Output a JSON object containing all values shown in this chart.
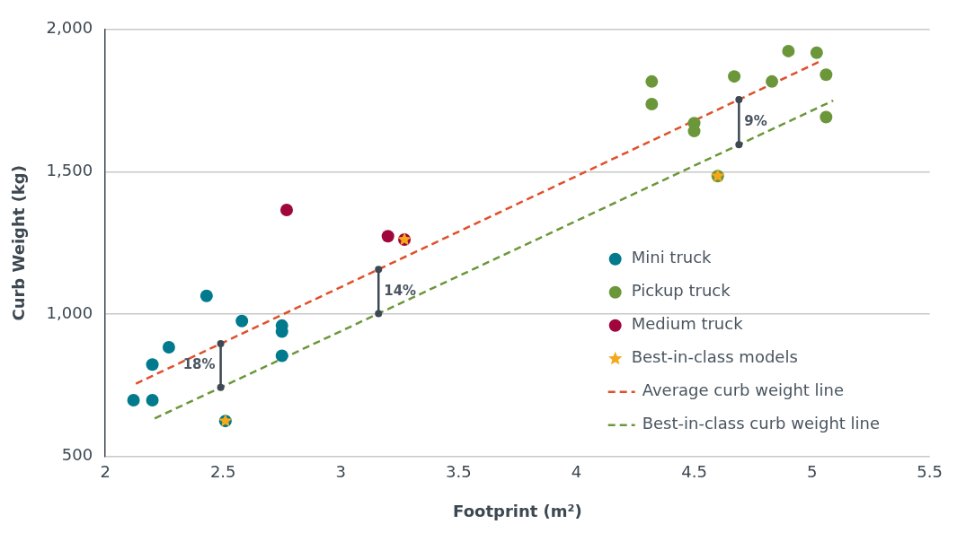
{
  "chart_data": {
    "type": "scatter",
    "xlabel": "Footprint (m²)",
    "ylabel": "Curb Weight (kg)",
    "xlim": [
      2,
      5.5
    ],
    "xticks": [
      2,
      2.5,
      3,
      3.5,
      4,
      4.5,
      5,
      5.5
    ],
    "ylim": [
      500,
      2000
    ],
    "yticks": [
      {
        "value": 500,
        "label": "500"
      },
      {
        "value": 1000,
        "label": "1,000"
      },
      {
        "value": 1500,
        "label": "1,500"
      },
      {
        "value": 2000,
        "label": "2,000"
      }
    ],
    "grid": "y",
    "legend": "bottom right",
    "marker": "circle",
    "series": [
      {
        "name": "Mini truck",
        "color": "#007a8c",
        "x": [
          2.12,
          2.2,
          2.2,
          2.27,
          2.43,
          2.58,
          2.75,
          2.75,
          2.75,
          2.51
        ],
        "values": [
          698,
          698,
          823,
          884,
          1064,
          976,
          960,
          939,
          854,
          625
        ]
      },
      {
        "name": "Pickup truck",
        "color": "#6b973a",
        "x": [
          4.32,
          4.32,
          4.5,
          4.5,
          4.67,
          4.83,
          4.9,
          5.02,
          5.06,
          5.06,
          4.6
        ],
        "values": [
          1817,
          1738,
          1671,
          1643,
          1835,
          1817,
          1924,
          1918,
          1841,
          1692,
          1485
        ]
      },
      {
        "name": "Medium truck",
        "color": "#a0063c",
        "x": [
          2.77,
          3.2,
          3.27
        ],
        "values": [
          1366,
          1274,
          1262
        ]
      },
      {
        "name": "Best-in-class models",
        "color": "#f5a81c",
        "marker": "star",
        "x": [
          2.51,
          4.6,
          3.27
        ],
        "values": [
          625,
          1485,
          1262
        ]
      },
      {
        "name": "Average curb weight line",
        "type": "line",
        "line_style": "dashed",
        "marker": "none",
        "color": "#e0502a",
        "x": [
          2.13,
          5.04
        ],
        "values": [
          756,
          1890
        ]
      },
      {
        "name": "Best-in-class curb weight line",
        "type": "line",
        "line_style": "dashed",
        "marker": "none",
        "color": "#6b973a",
        "x": [
          2.21,
          5.09
        ],
        "values": [
          634,
          1750
        ]
      }
    ],
    "annotations": [
      {
        "text": "18%",
        "x": 2.49,
        "y": 896
      },
      {
        "text": "14%",
        "x": 3.16,
        "y": 1157
      },
      {
        "text": "9%",
        "x": 4.69,
        "y": 1754
      }
    ]
  }
}
